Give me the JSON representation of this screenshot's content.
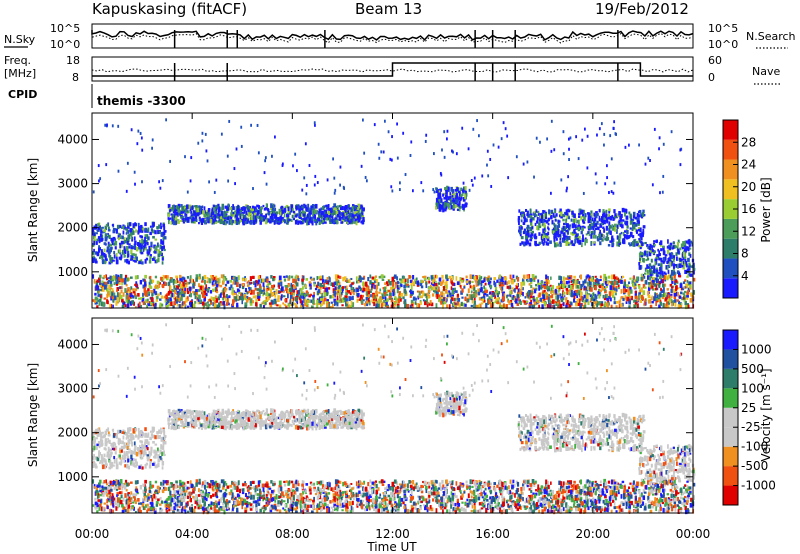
{
  "header": {
    "station": "Kapuskasing (fitACF)",
    "beam": "Beam 13",
    "date": "19/Feb/2012"
  },
  "summary_panels": {
    "nsky_label": "N.Sky",
    "nsearch_label": "N.Search",
    "nsky_ticks": [
      "10^5",
      "10^0"
    ],
    "nsky_right_ticks": [
      "10^5",
      "10^0"
    ],
    "freq_label_line1": "Freq.",
    "freq_label_line2": "[MHz]",
    "freq_ticks": [
      "18",
      "8"
    ],
    "nave_label": "Nave",
    "nave_ticks": [
      "60",
      "0"
    ],
    "cpid_label": "CPID",
    "cpid_value": "themis -3300"
  },
  "colors": {
    "power": [
      "#1a1aff",
      "#2050c0",
      "#2e7d6a",
      "#4c9c5a",
      "#9acd32",
      "#f0c020",
      "#f09020",
      "#f05010",
      "#e00000"
    ],
    "velocity": [
      "#1a1aff",
      "#2050a0",
      "#2e7d6a",
      "#40b040",
      "#c8c8c8",
      "#c8c8c8",
      "#f09020",
      "#f05010",
      "#e00000"
    ]
  },
  "chart_data": [
    {
      "type": "heatmap",
      "panel": "power",
      "ylabel": "Slant Range [km]",
      "ylim": [
        180,
        4600
      ],
      "yticks": [
        "4000",
        "3000",
        "2000",
        "1000"
      ],
      "colorbar_label": "Power [dB]",
      "colorbar_ticks": [
        "28",
        "24",
        "20",
        "16",
        "12",
        "8",
        "4"
      ],
      "x_range_hours": [
        0,
        24
      ],
      "echo_regions": [
        {
          "t0": 0.0,
          "t1": 2.9,
          "r0": 1200,
          "r1": 2100
        },
        {
          "t0": 3.0,
          "t1": 10.8,
          "r0": 2100,
          "r1": 2500
        },
        {
          "t0": 13.7,
          "t1": 14.9,
          "r0": 2400,
          "r1": 2900
        },
        {
          "t0": 17.0,
          "t1": 22.0,
          "r0": 1600,
          "r1": 2400
        },
        {
          "t0": 21.8,
          "t1": 24.0,
          "r0": 900,
          "r1": 1700
        },
        {
          "t0": 0.0,
          "t1": 24.0,
          "r0": 200,
          "r1": 900
        }
      ]
    },
    {
      "type": "heatmap",
      "panel": "velocity",
      "ylabel": "Slant Range [km]",
      "ylim": [
        180,
        4600
      ],
      "yticks": [
        "4000",
        "3000",
        "2000",
        "1000"
      ],
      "xlabel": "Time UT",
      "xticks": [
        "00:00",
        "04:00",
        "08:00",
        "12:00",
        "16:00",
        "20:00",
        "00:00"
      ],
      "colorbar_label": "Velocity [m s⁻¹]",
      "colorbar_ticks": [
        "1000",
        "500",
        "100",
        "25",
        "-25",
        "-100",
        "-500",
        "-1000"
      ],
      "x_range_hours": [
        0,
        24
      ]
    }
  ]
}
